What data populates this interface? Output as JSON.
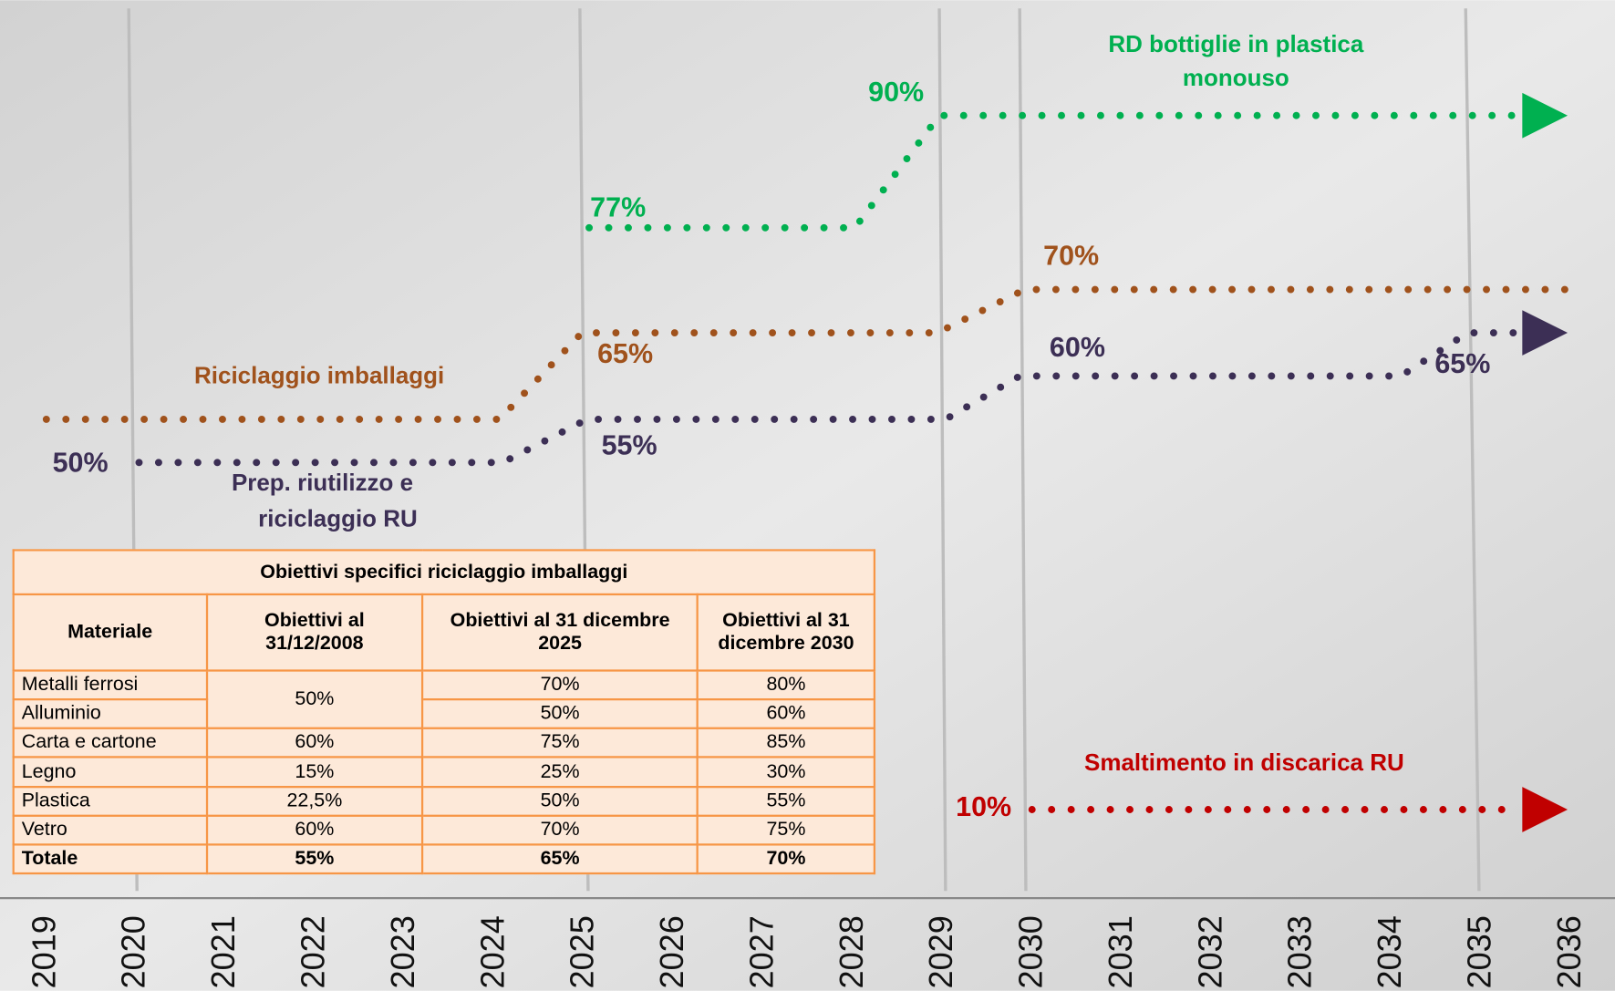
{
  "years": [
    "2019",
    "2020",
    "2021",
    "2022",
    "2023",
    "2024",
    "2025",
    "2026",
    "2027",
    "2028",
    "2029",
    "2030",
    "2031",
    "2032",
    "2033",
    "2034",
    "2035",
    "2036"
  ],
  "timeline": {
    "bottles": {
      "name_lines": [
        "RD bottiglie in plastica",
        "monouso"
      ],
      "labels": [
        "77%",
        "90%"
      ]
    },
    "packaging": {
      "name": "Riciclaggio imballaggi",
      "labels": [
        "65%",
        "70%"
      ]
    },
    "municipal": {
      "name_lines": [
        "Prep. riutilizzo e",
        "riciclaggio RU"
      ],
      "labels": [
        "50%",
        "55%",
        "60%",
        "65%"
      ]
    },
    "landfill": {
      "name": "Smaltimento in discarica RU",
      "labels": [
        "10%"
      ]
    }
  },
  "table": {
    "title": "Obiettivi specifici riciclaggio imballaggi",
    "header": [
      "Materiale",
      "Obiettivi al 31/12/2008",
      "Obiettivi al 31 dicembre 2025",
      "Obiettivi al 31 dicembre 2030"
    ],
    "rows": [
      [
        "Metalli ferrosi",
        "50%",
        "70%",
        "80%"
      ],
      [
        "Alluminio",
        "",
        "50%",
        "60%"
      ],
      [
        "Carta e cartone",
        "60%",
        "75%",
        "85%"
      ],
      [
        "Legno",
        "15%",
        "25%",
        "30%"
      ],
      [
        "Plastica",
        "22,5%",
        "50%",
        "55%"
      ],
      [
        "Vetro",
        "60%",
        "70%",
        "75%"
      ],
      [
        "Totale",
        "55%",
        "65%",
        "70%"
      ]
    ]
  }
}
